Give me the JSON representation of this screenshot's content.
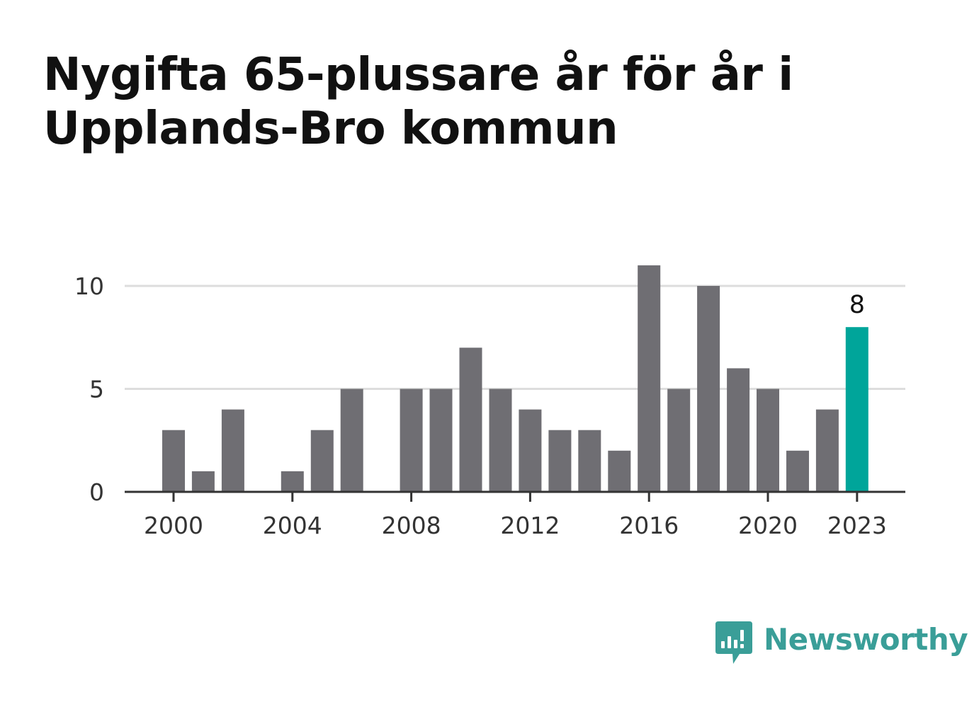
{
  "title": "Nygifta 65-plussare år för år i Upplands-Bro kommun",
  "brand": {
    "name": "Newsworthy",
    "icon": "newsworthy-logo-icon"
  },
  "colors": {
    "bar": "#6f6e73",
    "highlight": "#00a59a",
    "grid": "#dddddd",
    "axis": "#333333",
    "brand": "#3a9e98"
  },
  "chart_data": {
    "type": "bar",
    "title": "Nygifta 65-plussare år för år i Upplands-Bro kommun",
    "xlabel": "",
    "ylabel": "",
    "x": [
      1999,
      2000,
      2001,
      2002,
      2003,
      2004,
      2005,
      2006,
      2007,
      2008,
      2009,
      2010,
      2011,
      2012,
      2013,
      2014,
      2015,
      2016,
      2017,
      2018,
      2019,
      2020,
      2021,
      2022,
      2023
    ],
    "values": [
      0,
      3,
      1,
      4,
      0,
      1,
      3,
      5,
      0,
      5,
      5,
      7,
      5,
      4,
      3,
      3,
      2,
      11,
      5,
      10,
      6,
      5,
      2,
      4,
      8
    ],
    "highlight_index": 24,
    "highlight_label": "8",
    "ylim": [
      0,
      10.5
    ],
    "yticks": [
      0,
      5,
      10
    ],
    "xticks": [
      2000,
      2004,
      2008,
      2012,
      2016,
      2020,
      2023
    ],
    "grid": true,
    "legend": "none"
  }
}
